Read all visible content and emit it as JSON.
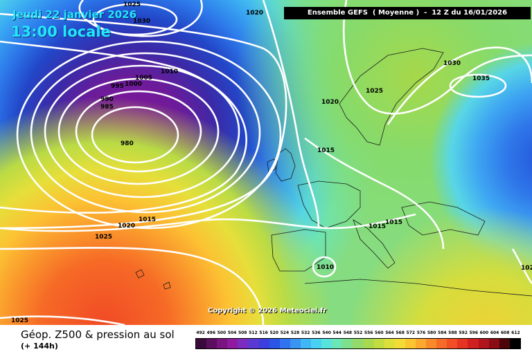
{
  "header": {
    "date_line": "Jeudi 22 janvier 2026",
    "time_line": "13:00 locale",
    "run_banner": "Ensemble GEFS  ( Moyenne )  -  12 Z du 16/01/2026"
  },
  "map": {
    "copyright": "Copyright © 2026 Meteociel.fr",
    "isobar_labels": [
      "1025",
      "1030",
      "1020",
      "1010",
      "1005",
      "1000",
      "995",
      "990",
      "985",
      "980",
      "1020",
      "1025",
      "1030",
      "1035",
      "1015",
      "1015",
      "1015",
      "1020",
      "1025",
      "1010",
      "1025",
      "1015",
      "102"
    ],
    "features": {
      "low_center_label": "980",
      "high_scandinavia_label": "1035"
    }
  },
  "footer": {
    "title": "Géop. Z500 & pression au sol",
    "lead": "(+ 144h)"
  },
  "legend": {
    "ticks": [
      "492",
      "496",
      "500",
      "504",
      "508",
      "512",
      "516",
      "520",
      "524",
      "528",
      "532",
      "536",
      "540",
      "544",
      "548",
      "552",
      "556",
      "560",
      "564",
      "568",
      "572",
      "576",
      "580",
      "584",
      "588",
      "592",
      "596",
      "600",
      "604",
      "608",
      "612"
    ],
    "colors": [
      "#3a0a3a",
      "#5c0f5f",
      "#7a1480",
      "#8f1aa0",
      "#7b2bbf",
      "#5a3ad0",
      "#3b3fdc",
      "#2a55e6",
      "#2f74ee",
      "#3a94f2",
      "#3fb6f5",
      "#47d2f3",
      "#56e3de",
      "#6be6b6",
      "#7fe08c",
      "#93da6a",
      "#a9d94f",
      "#c3dc3f",
      "#dde03a",
      "#f2dc35",
      "#fbc531",
      "#fba82e",
      "#f98a2a",
      "#f66b27",
      "#f24d24",
      "#e53422",
      "#cf1f1f",
      "#b0141c",
      "#8a0c15",
      "#4d0508",
      "#000000"
    ]
  }
}
